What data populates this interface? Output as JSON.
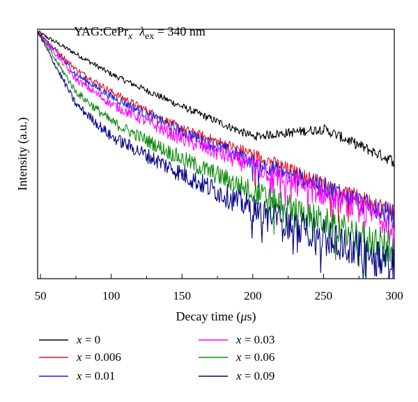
{
  "chart_data": {
    "type": "line",
    "title": "",
    "annotation": {
      "prefix": "YAG:CePr",
      "prefix_sub": "x",
      "lambda_symbol": "λ",
      "lambda_sub": "ex",
      "lambda_value": " = 340 nm"
    },
    "xlabel": {
      "text": "Decay time (",
      "mu": "μ",
      "unit": "s)"
    },
    "ylabel": "Intensity (a.u.)",
    "xlim": [
      48,
      300
    ],
    "ylim": [
      0,
      1
    ],
    "y_scale": "log (arbitrary units, no tick labels)",
    "grid": false,
    "legend_placement": "below-plot",
    "x_ticks": [
      50,
      100,
      150,
      200,
      250,
      300
    ],
    "x_tick_labels": [
      "50",
      "100",
      "150",
      "200",
      "250",
      "300"
    ],
    "series": [
      {
        "label_var": "x",
        "label_value": " = 0",
        "color": "#000000",
        "x": [
          48,
          100,
          150,
          200,
          250,
          300
        ],
        "values": [
          0.99,
          0.82,
          0.69,
          0.57,
          0.6,
          0.47
        ]
      },
      {
        "label_var": "x",
        "label_value": " = 0.006",
        "color": "#e8101a",
        "x": [
          48,
          75,
          100,
          150,
          200,
          250,
          300
        ],
        "values": [
          0.99,
          0.84,
          0.75,
          0.6,
          0.5,
          0.38,
          0.27
        ]
      },
      {
        "label_var": "x",
        "label_value": " = 0.01",
        "color": "#1a1adc",
        "x": [
          48,
          75,
          100,
          150,
          200,
          250,
          300
        ],
        "values": [
          0.99,
          0.82,
          0.73,
          0.59,
          0.47,
          0.37,
          0.25
        ]
      },
      {
        "label_var": "x",
        "label_value": " = 0.03",
        "color": "#ff00ff",
        "x": [
          48,
          75,
          100,
          150,
          200,
          250,
          300
        ],
        "values": [
          0.99,
          0.8,
          0.7,
          0.56,
          0.45,
          0.34,
          0.22
        ]
      },
      {
        "label_var": "x",
        "label_value": " = 0.06",
        "color": "#0a8a0a",
        "x": [
          48,
          75,
          100,
          150,
          200,
          250,
          300
        ],
        "values": [
          0.99,
          0.75,
          0.63,
          0.48,
          0.35,
          0.23,
          0.12
        ]
      },
      {
        "label_var": "x",
        "label_value": " = 0.09",
        "color": "#000080",
        "x": [
          48,
          75,
          100,
          150,
          200,
          250,
          300
        ],
        "values": [
          0.99,
          0.7,
          0.57,
          0.42,
          0.28,
          0.17,
          0.07
        ]
      }
    ]
  }
}
